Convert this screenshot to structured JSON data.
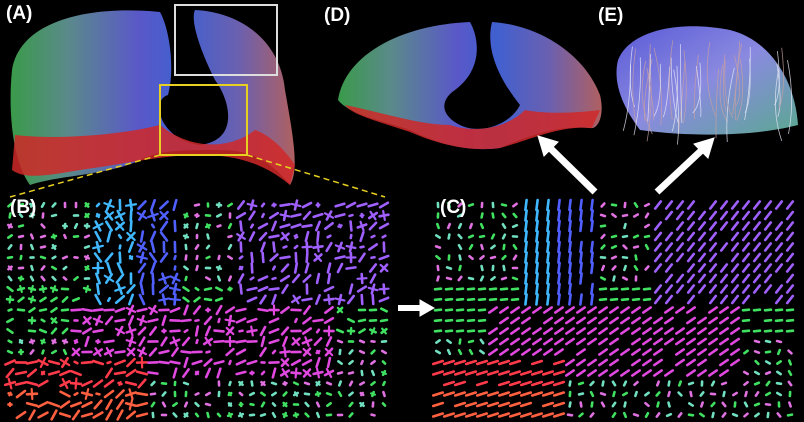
{
  "panels": {
    "a": {
      "label": "(A)"
    },
    "b": {
      "label": "(B)"
    },
    "c": {
      "label": "(C)"
    },
    "d": {
      "label": "(D)"
    },
    "e": {
      "label": "(E)"
    }
  }
}
